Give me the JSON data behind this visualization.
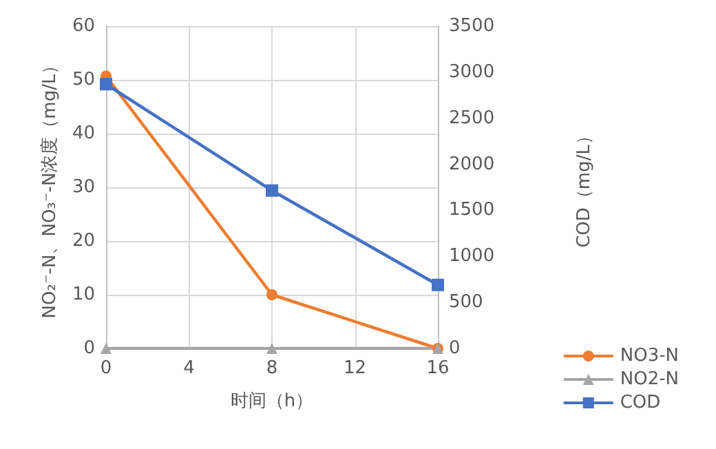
{
  "chart_data": {
    "type": "line",
    "xlabel": "时间（h）",
    "ylabel": "NO₂⁻-N、NO₃⁻-N浓度（mg/L）",
    "y2label": "COD（mg/L）",
    "x": [
      0,
      8,
      16
    ],
    "xlim": [
      0,
      16
    ],
    "xticks": [
      0,
      4,
      8,
      12,
      16
    ],
    "ylim": [
      0,
      60
    ],
    "yticks": [
      0,
      10,
      20,
      30,
      40,
      50,
      60
    ],
    "y2lim": [
      0,
      3500
    ],
    "y2ticks": [
      0,
      500,
      1000,
      1500,
      2000,
      2500,
      3000,
      3500
    ],
    "grid": true,
    "legend": "bottom right",
    "series": [
      {
        "name": "NO3-N",
        "color": "#ed7d31",
        "marker": "circle",
        "values": [
          50.7,
          10,
          0
        ]
      },
      {
        "name": "NO2-N",
        "color": "#a5a5a5",
        "marker": "triangle",
        "values": [
          0,
          0,
          0
        ]
      },
      {
        "name": "COD",
        "color": "#4472c4",
        "marker": "square",
        "axis": "y2",
        "values": [
          2870,
          1715,
          690
        ]
      }
    ]
  }
}
